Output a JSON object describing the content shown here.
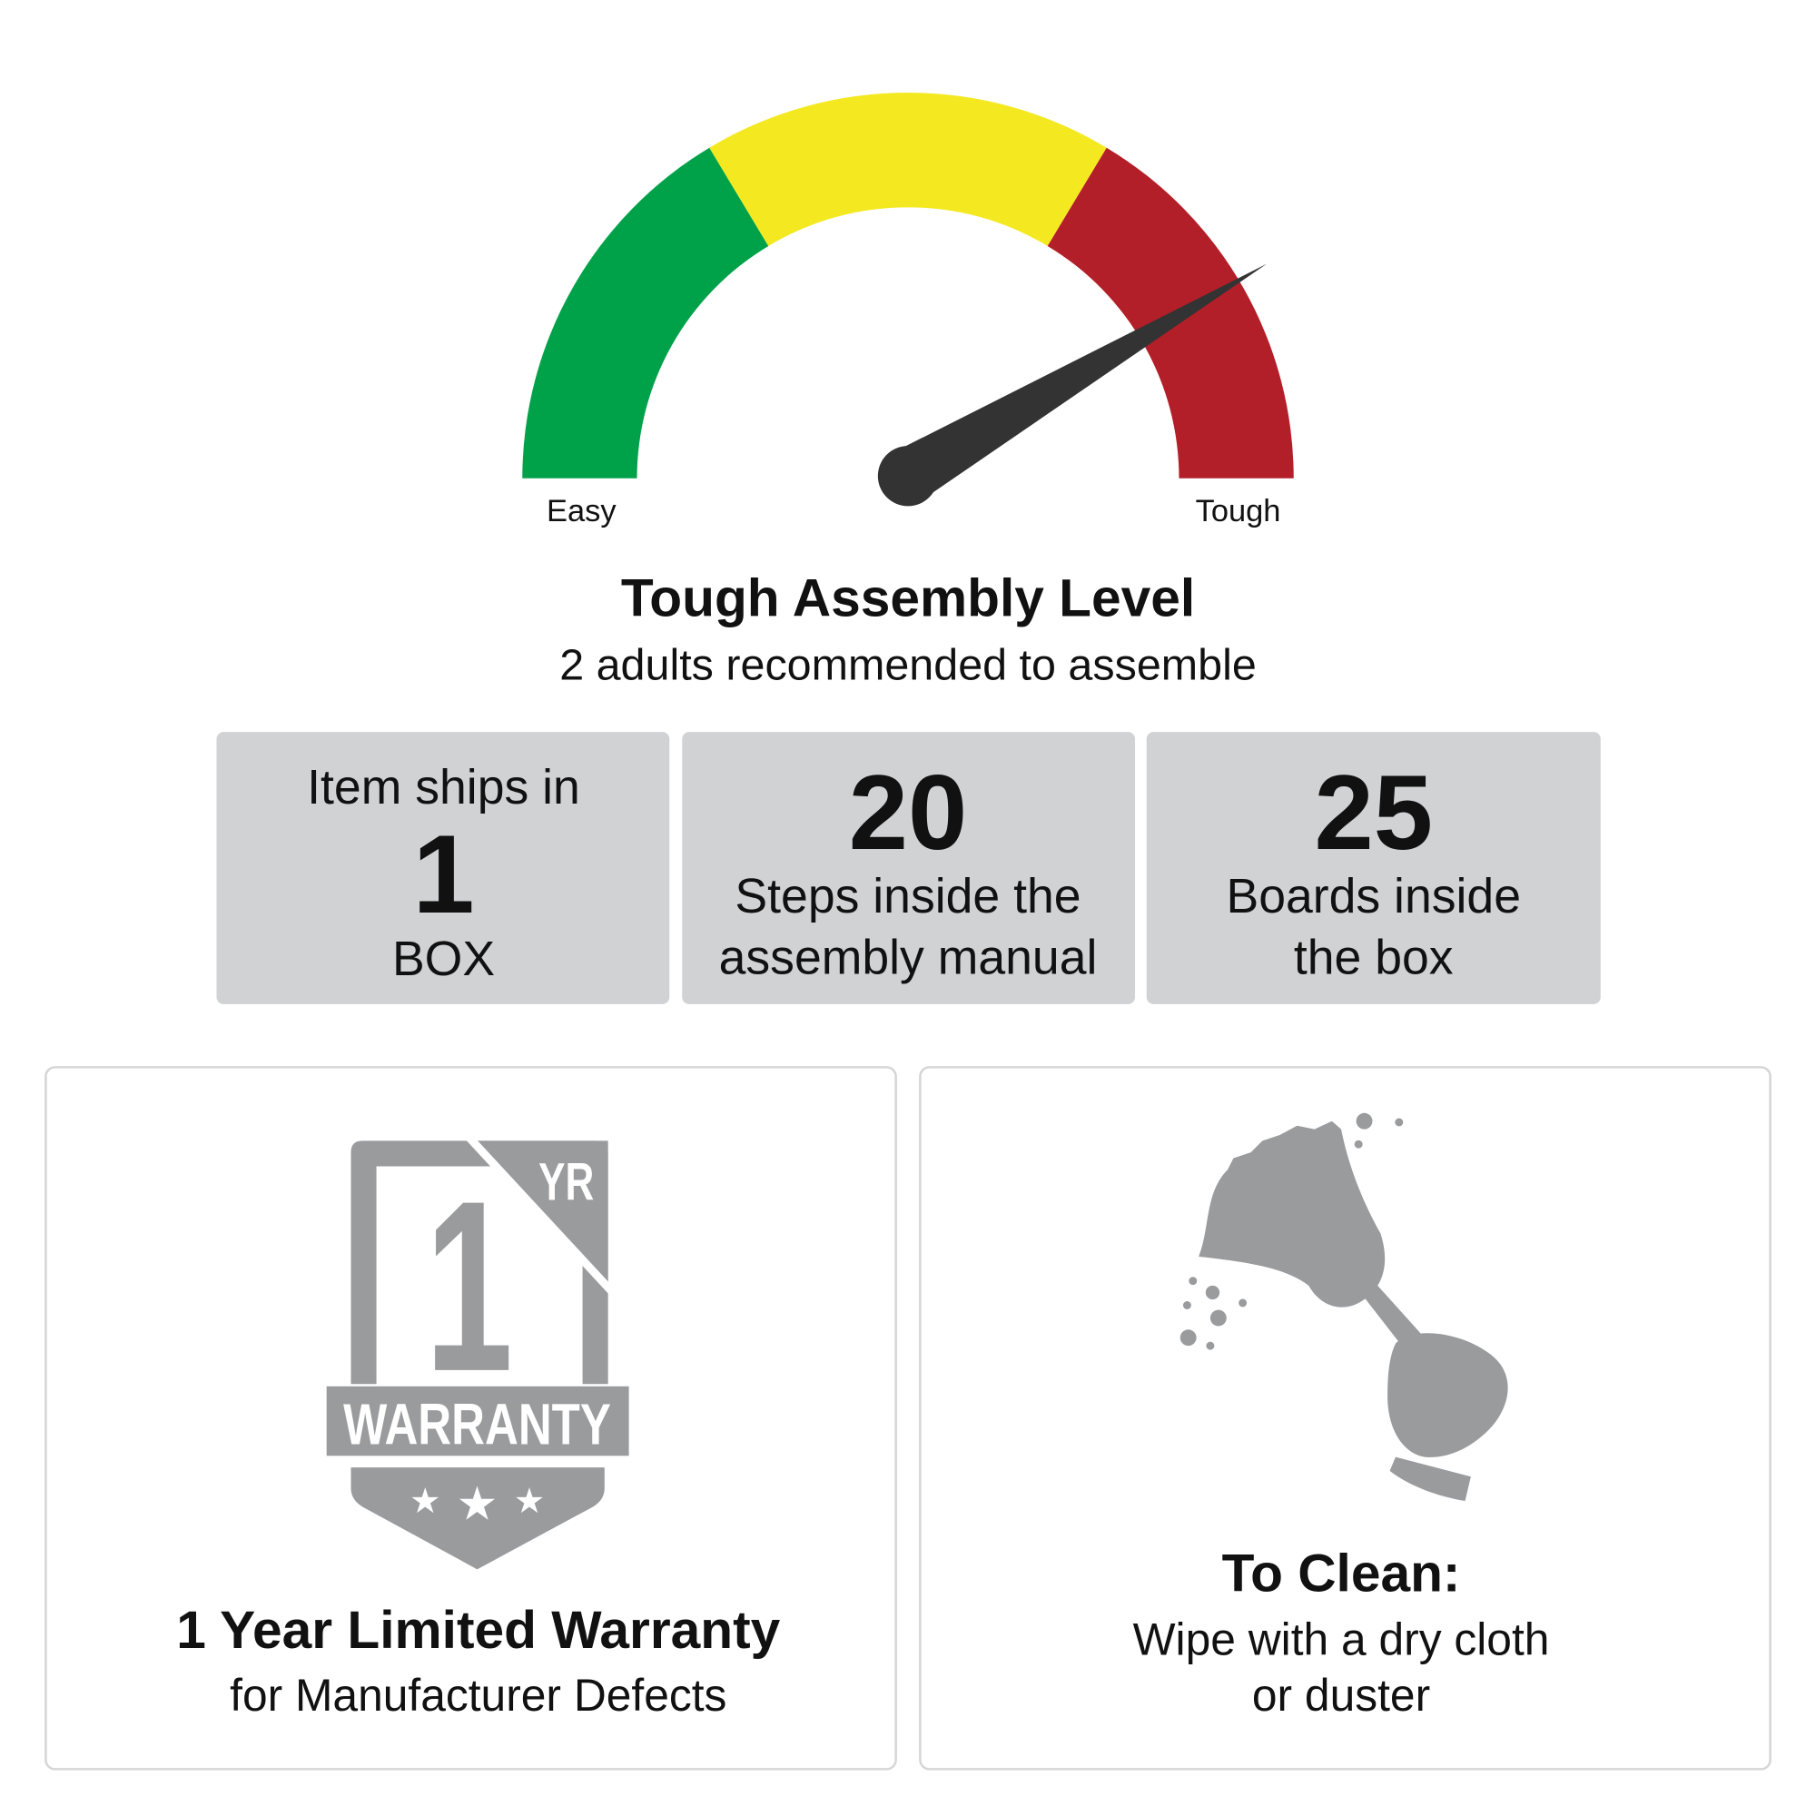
{
  "gauge": {
    "level": 0.83,
    "min_label": "Easy",
    "max_label": "Tough",
    "segment_colors": [
      "#00a249",
      "#f4e921",
      "#b31f28"
    ],
    "needle_color": "#333333"
  },
  "assembly": {
    "title": "Tough Assembly Level",
    "subtitle": "2 adults recommended to assemble"
  },
  "stats": [
    {
      "top": "Item ships in",
      "value": "1",
      "bottom": "BOX"
    },
    {
      "value": "20",
      "line1": "Steps inside the",
      "line2": "assembly manual"
    },
    {
      "value": "25",
      "line1": "Boards inside",
      "line2": "the box"
    }
  ],
  "stat_box_color": "#d1d2d4",
  "icon_color": "#9a9b9d",
  "warranty": {
    "badge_number": "1",
    "badge_unit": "YR",
    "badge_label": "WARRANTY",
    "title": "1 Year Limited Warranty",
    "subtitle": "for Manufacturer Defects"
  },
  "cleaning": {
    "title": "To Clean:",
    "line1": "Wipe with a dry cloth",
    "line2": "or duster"
  }
}
